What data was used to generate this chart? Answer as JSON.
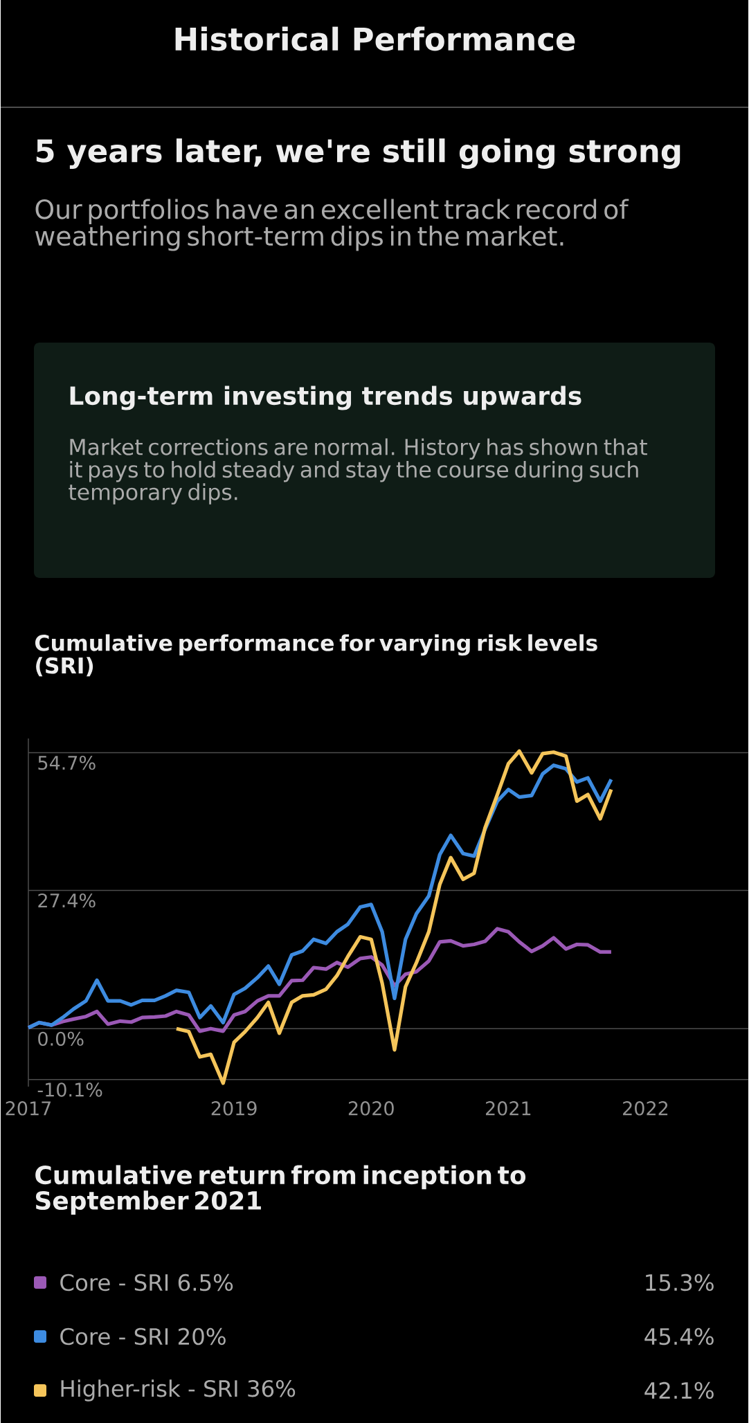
{
  "chart_data": {
    "type": "line",
    "title": "Cumulative performance for varying risk levels (SRI)",
    "legend_title": "Cumulative return from inception to September 2021",
    "annotations": [
      "Historical Performance",
      "5 years later, we're still going strong",
      "Our portfolios have an excellent track record of weathering short-term dips in the market.",
      "Long-term investing trends upwards",
      "Market corrections are normal. History has shown that it pays to hold steady and stay the course during such temporary dips.",
      "15.3%",
      "45.4%",
      "42.1%"
    ],
    "x": [
      2017.5,
      2017.58,
      2017.67,
      2017.75,
      2017.83,
      2017.92,
      2018.0,
      2018.08,
      2018.17,
      2018.25,
      2018.33,
      2018.42,
      2018.5,
      2018.58,
      2018.67,
      2018.75,
      2018.83,
      2018.92,
      2019.0,
      2019.08,
      2019.17,
      2019.25,
      2019.33,
      2019.42,
      2019.5,
      2019.58,
      2019.67,
      2019.75,
      2019.83,
      2019.92,
      2020.0,
      2020.08,
      2020.17,
      2020.25,
      2020.33,
      2020.42,
      2020.5,
      2020.58,
      2020.67,
      2020.75,
      2020.83,
      2020.92,
      2021.0,
      2021.08,
      2021.17,
      2021.25,
      2021.33,
      2021.42,
      2021.5,
      2021.58,
      2021.67,
      2021.75
    ],
    "series": [
      {
        "name": "Core - SRI 6.5%",
        "color": "#9b59b6",
        "values": [
          0.2,
          1.2,
          0.7,
          1.4,
          1.9,
          2.4,
          3.4,
          0.9,
          1.5,
          1.3,
          2.2,
          2.3,
          2.5,
          3.4,
          2.7,
          -0.5,
          0.0,
          -0.5,
          2.7,
          3.4,
          5.5,
          6.5,
          6.5,
          9.5,
          9.6,
          12.1,
          11.8,
          13.1,
          12.2,
          13.9,
          14.2,
          12.6,
          8.5,
          10.8,
          11.3,
          13.4,
          17.2,
          17.4,
          16.4,
          16.7,
          17.3,
          19.8,
          19.2,
          17.2,
          15.3,
          16.4,
          18.0,
          15.8,
          16.7,
          16.6,
          15.2,
          15.2
        ]
      },
      {
        "name": "Core - SRI 20%",
        "color": "#3d8be0",
        "values": [
          0.2,
          1.2,
          0.7,
          2.2,
          3.9,
          5.5,
          9.6,
          5.5,
          5.5,
          4.7,
          5.6,
          5.6,
          6.5,
          7.6,
          7.2,
          2.2,
          4.5,
          1.2,
          6.8,
          8.0,
          10.1,
          12.4,
          8.8,
          14.6,
          15.4,
          17.7,
          16.9,
          19.2,
          20.7,
          24.1,
          24.6,
          19.2,
          6.0,
          17.7,
          22.8,
          26.3,
          34.5,
          38.3,
          34.7,
          34.2,
          39.5,
          45.1,
          47.4,
          45.9,
          46.2,
          50.5,
          52.2,
          51.5,
          48.9,
          49.7,
          45.1,
          49.4
        ]
      },
      {
        "name": "Higher-risk - SRI 36%",
        "color": "#f5c55a",
        "values": [
          null,
          null,
          null,
          null,
          null,
          null,
          null,
          null,
          null,
          null,
          null,
          null,
          null,
          0.0,
          -0.6,
          -5.6,
          -5.1,
          -10.8,
          -2.7,
          -0.6,
          2.2,
          5.2,
          -0.9,
          5.2,
          6.5,
          6.7,
          7.8,
          10.5,
          14.3,
          18.2,
          17.7,
          9.0,
          -4.2,
          8.3,
          13.1,
          19.2,
          28.6,
          33.9,
          29.6,
          30.8,
          39.8,
          46.4,
          52.5,
          55.0,
          50.7,
          54.5,
          54.8,
          54.0,
          45.1,
          46.4,
          41.6,
          47.4
        ]
      }
    ],
    "xlim": [
      2017.5,
      2022.75
    ],
    "ylim": [
      -11.5,
      57.5
    ],
    "xticks": [
      {
        "value": 2017.5,
        "label": "2017"
      },
      2019,
      2020,
      2021,
      2022
    ],
    "yticks": [
      {
        "value": -10.1,
        "label": "-10.1%"
      },
      {
        "value": 0,
        "label": "0.0%"
      },
      {
        "value": 27.4,
        "label": "27.4%"
      },
      {
        "value": 54.7,
        "label": "54.7%"
      }
    ],
    "grid": "y",
    "legend": "bottom"
  }
}
